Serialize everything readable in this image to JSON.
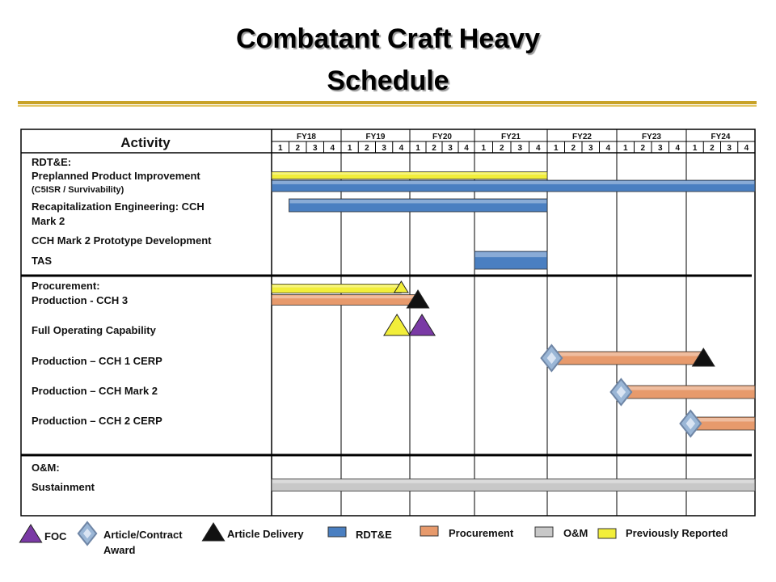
{
  "title_line1": "Combatant Craft Heavy",
  "title_line2": "Schedule",
  "chart_data": {
    "type": "gantt",
    "activity_header": "Activity",
    "fiscal_years": [
      "FY18",
      "FY19",
      "FY20",
      "FY21",
      "FY22",
      "FY23",
      "FY24"
    ],
    "quarters": [
      "1",
      "2",
      "3",
      "4"
    ],
    "sections": [
      {
        "key": "rdte",
        "label": "RDT&E:",
        "rows": [
          {
            "label": "Preplanned Product Improvement",
            "sublabel": "(C5ISR / Survivability)"
          },
          {
            "label": "Recapitalization Engineering: CCH",
            "sublabel": "Mark 2"
          },
          {
            "label": "CCH Mark 2 Prototype Development",
            "sublabel": ""
          },
          {
            "label": "TAS",
            "sublabel": ""
          }
        ]
      },
      {
        "key": "proc",
        "label": "Procurement:",
        "rows": [
          {
            "label": "Production - CCH 3",
            "sublabel": ""
          },
          {
            "label": "Full Operating Capability",
            "sublabel": ""
          },
          {
            "label": "Production – CCH 1 CERP",
            "sublabel": ""
          },
          {
            "label": "Production – CCH Mark 2",
            "sublabel": ""
          },
          {
            "label": "Production – CCH 2 CERP",
            "sublabel": ""
          }
        ]
      },
      {
        "key": "om",
        "label": "O&M:",
        "rows": [
          {
            "label": "Sustainment",
            "sublabel": ""
          }
        ]
      }
    ],
    "bars": [
      {
        "row": "ppi_prev",
        "kind": "previous",
        "start": 0,
        "end": 16
      },
      {
        "row": "ppi",
        "kind": "rdte",
        "start": 0,
        "end": 28
      },
      {
        "row": "recap",
        "kind": "rdte",
        "start": 1,
        "end": 16
      },
      {
        "row": "tas",
        "kind": "rdte",
        "start": 12,
        "end": 16
      },
      {
        "row": "proc_prev",
        "kind": "previous",
        "start": 0,
        "end": 7.5
      },
      {
        "row": "cch3",
        "kind": "procurement",
        "start": 0,
        "end": 8.5
      },
      {
        "row": "cch1cerp",
        "kind": "procurement",
        "start": 16.25,
        "end": 25
      },
      {
        "row": "cchmk2",
        "kind": "procurement",
        "start": 20.25,
        "end": 28
      },
      {
        "row": "cch2cerp",
        "kind": "procurement",
        "start": 24.25,
        "end": 28
      },
      {
        "row": "sustain",
        "kind": "om",
        "start": 0,
        "end": 28
      }
    ],
    "milestones": [
      {
        "row": "proc_prev",
        "kind": "previous",
        "at": 7.5
      },
      {
        "row": "cch3",
        "kind": "delivery",
        "at": 8.5
      },
      {
        "row": "foc",
        "kind": "previous",
        "at": 7.25
      },
      {
        "row": "foc",
        "kind": "foc",
        "at": 8.75
      },
      {
        "row": "cch1cerp",
        "kind": "award",
        "at": 16.25
      },
      {
        "row": "cch1cerp",
        "kind": "delivery",
        "at": 25
      },
      {
        "row": "cchmk2",
        "kind": "award",
        "at": 20.25
      },
      {
        "row": "cch2cerp",
        "kind": "award",
        "at": 24.25
      }
    ],
    "legend": [
      {
        "key": "foc",
        "label": "FOC"
      },
      {
        "key": "award",
        "label": "Article/Contract",
        "label2": "Award"
      },
      {
        "key": "delivery",
        "label": "Article Delivery"
      },
      {
        "key": "rdte",
        "label": "RDT&E"
      },
      {
        "key": "procurement",
        "label": "Procurement"
      },
      {
        "key": "om",
        "label": "O&M"
      },
      {
        "key": "previous",
        "label": "Previously Reported"
      }
    ],
    "colors": {
      "rdte": "#4a7fc1",
      "procurement": "#e79a6c",
      "om": "#c8c8c8",
      "previous": "#f2ee3a",
      "foc": "#7a3aa5",
      "award": "#9ab6d6",
      "delivery": "#111111",
      "grid": "#000000"
    }
  }
}
